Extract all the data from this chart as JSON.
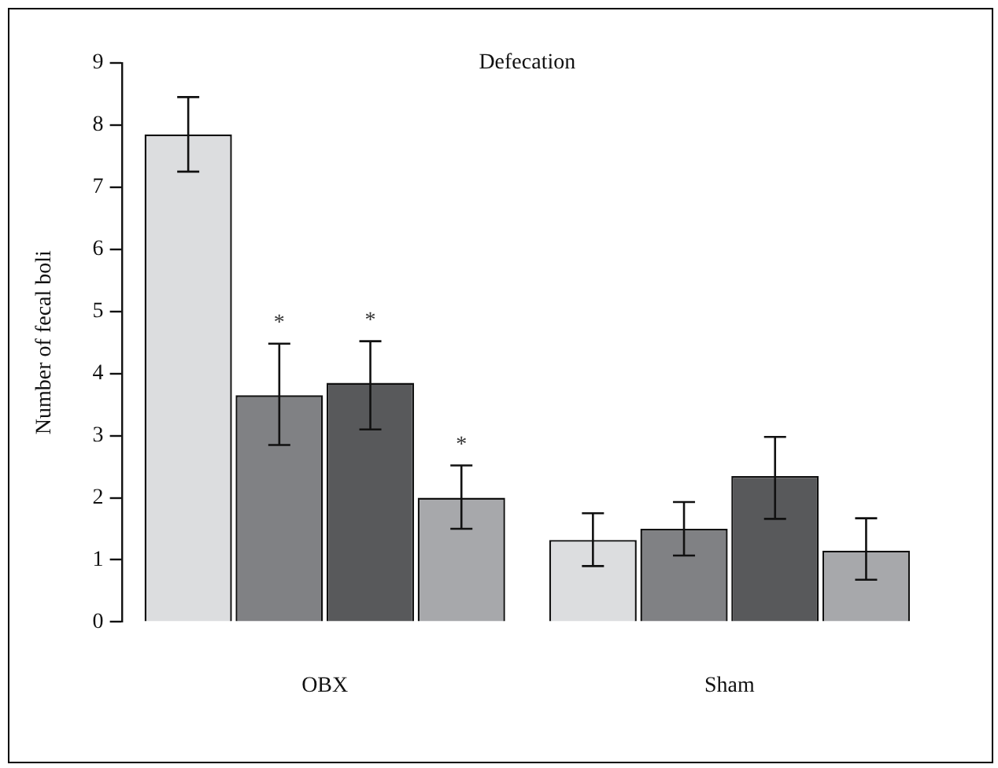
{
  "chart_data": {
    "type": "bar",
    "title": "Defecation",
    "ylabel": "Number of fecal boli",
    "categories": [
      "OBX",
      "Sham"
    ],
    "series": [
      {
        "color": "#dcdddf",
        "values": [
          7.85,
          1.32
        ],
        "errors": [
          [
            7.25,
            8.45
          ],
          [
            0.9,
            1.75
          ]
        ]
      },
      {
        "color": "#808184",
        "values": [
          3.65,
          1.5
        ],
        "errors": [
          [
            2.85,
            4.48
          ],
          [
            1.07,
            1.93
          ]
        ],
        "value_labels": [
          "*",
          null
        ]
      },
      {
        "color": "#58595b",
        "values": [
          3.85,
          2.35
        ],
        "errors": [
          [
            3.1,
            4.52
          ],
          [
            1.66,
            2.98
          ]
        ],
        "value_labels": [
          "*",
          null
        ]
      },
      {
        "color": "#a7a8ab",
        "values": [
          2.0,
          1.15
        ],
        "errors": [
          [
            1.5,
            2.52
          ],
          [
            0.68,
            1.67
          ]
        ],
        "value_labels": [
          "*",
          null
        ]
      }
    ],
    "ylim": [
      0,
      9
    ],
    "yticks": [
      0,
      1,
      2,
      3,
      4,
      5,
      6,
      7,
      8,
      9
    ],
    "grid": false,
    "legend": false
  }
}
